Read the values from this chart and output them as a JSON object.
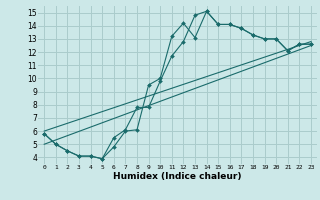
{
  "xlabel": "Humidex (Indice chaleur)",
  "xlim": [
    -0.5,
    23.5
  ],
  "ylim": [
    3.5,
    15.5
  ],
  "xticks": [
    0,
    1,
    2,
    3,
    4,
    5,
    6,
    7,
    8,
    9,
    10,
    11,
    12,
    13,
    14,
    15,
    16,
    17,
    18,
    19,
    20,
    21,
    22,
    23
  ],
  "yticks": [
    4,
    5,
    6,
    7,
    8,
    9,
    10,
    11,
    12,
    13,
    14,
    15
  ],
  "bg_color": "#cce8e8",
  "grid_color": "#aacccc",
  "line_color": "#1a6b6b",
  "line1_x": [
    0,
    1,
    2,
    3,
    4,
    5,
    6,
    7,
    8,
    9,
    10,
    11,
    12,
    13,
    14,
    15,
    16,
    17,
    18,
    19,
    20,
    21,
    22,
    23
  ],
  "line1_y": [
    5.8,
    5.0,
    4.5,
    4.1,
    4.1,
    3.9,
    4.8,
    6.0,
    6.1,
    9.5,
    10.0,
    13.2,
    14.2,
    13.1,
    15.1,
    14.1,
    14.1,
    13.8,
    13.3,
    13.0,
    13.0,
    12.1,
    12.6,
    12.6
  ],
  "line2_x": [
    0,
    1,
    2,
    3,
    4,
    5,
    6,
    7,
    8,
    9,
    10,
    11,
    12,
    13,
    14,
    15,
    16,
    17,
    18,
    19,
    20,
    21,
    22,
    23
  ],
  "line2_y": [
    5.8,
    5.0,
    4.5,
    4.1,
    4.1,
    3.9,
    5.5,
    6.1,
    7.8,
    7.8,
    9.8,
    11.7,
    12.8,
    14.8,
    15.1,
    14.1,
    14.1,
    13.8,
    13.3,
    13.0,
    13.0,
    12.1,
    12.6,
    12.6
  ],
  "line3_x": [
    0,
    23
  ],
  "line3_y": [
    5.0,
    12.5
  ],
  "line4_x": [
    0,
    23
  ],
  "line4_y": [
    6.0,
    12.8
  ]
}
